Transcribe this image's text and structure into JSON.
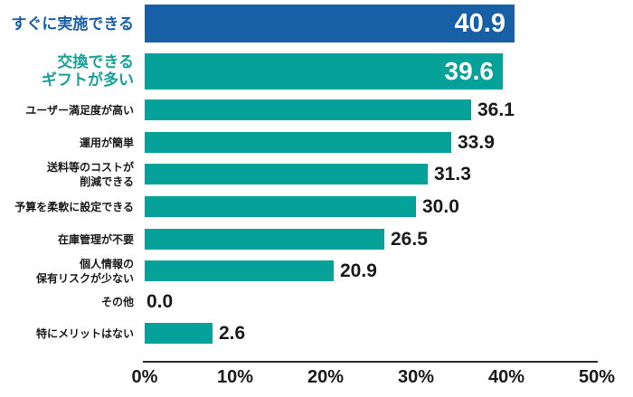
{
  "chart_data": {
    "type": "bar",
    "orientation": "horizontal",
    "title": "",
    "xlabel": "",
    "ylabel": "",
    "xlim": [
      0,
      50
    ],
    "x_ticks": [
      "0%",
      "10%",
      "20%",
      "30%",
      "40%",
      "50%"
    ],
    "grid": false,
    "legend": "none",
    "colors": {
      "highlight_bar_blue": "#1760A8",
      "bar_teal": "#06A29A",
      "highlight_label_blue": "#1A5FA8",
      "highlight_label_teal": "#16A19A",
      "value_text_inside": "#FFFFFF",
      "value_text_outside": "#1A1A1A",
      "axis_line": "#2D2D2D"
    },
    "rows": [
      {
        "label_lines": [
          "すぐに実施できる"
        ],
        "value": 40.9,
        "value_label": "40.9",
        "style": "highlight-blue",
        "value_position": "inside"
      },
      {
        "label_lines": [
          "交換できる",
          "ギフトが多い"
        ],
        "value": 39.6,
        "value_label": "39.6",
        "style": "highlight-teal",
        "value_position": "inside"
      },
      {
        "label_lines": [
          "ユーザー満足度が高い"
        ],
        "value": 36.1,
        "value_label": "36.1",
        "style": "normal",
        "value_position": "outside"
      },
      {
        "label_lines": [
          "運用が簡単"
        ],
        "value": 33.9,
        "value_label": "33.9",
        "style": "normal",
        "value_position": "outside"
      },
      {
        "label_lines": [
          "送料等のコストが",
          "削減できる"
        ],
        "value": 31.3,
        "value_label": "31.3",
        "style": "normal",
        "value_position": "outside"
      },
      {
        "label_lines": [
          "予算を柔軟に設定できる"
        ],
        "value": 30.0,
        "value_label": "30.0",
        "style": "normal",
        "value_position": "outside"
      },
      {
        "label_lines": [
          "在庫管理が不要"
        ],
        "value": 26.5,
        "value_label": "26.5",
        "style": "normal",
        "value_position": "outside"
      },
      {
        "label_lines": [
          "個人情報の",
          "保有リスクが少ない"
        ],
        "value": 20.9,
        "value_label": "20.9",
        "style": "normal",
        "value_position": "outside"
      },
      {
        "label_lines": [
          "その他"
        ],
        "value": 0.0,
        "value_label": "0.0",
        "style": "normal",
        "value_position": "outside"
      },
      {
        "label_lines": [
          "特にメリットはない"
        ],
        "value": 2.6,
        "value_label": "2.6",
        "style": "normal",
        "value_position": "outside",
        "display_value_pct": 7.5
      }
    ]
  }
}
